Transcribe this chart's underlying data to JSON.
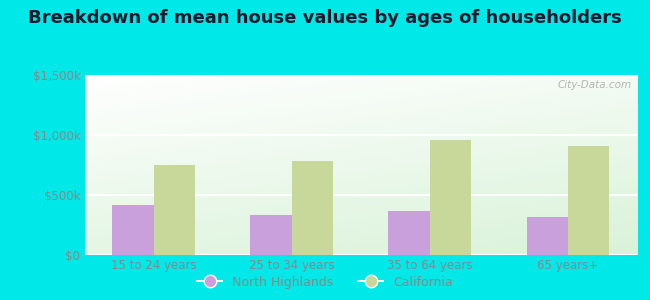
{
  "title": "Breakdown of mean house values by ages of householders",
  "categories": [
    "15 to 24 years",
    "25 to 34 years",
    "35 to 64 years",
    "65 years+"
  ],
  "north_highlands": [
    420000,
    330000,
    370000,
    320000
  ],
  "california": [
    750000,
    780000,
    960000,
    910000
  ],
  "ylim": [
    0,
    1500000
  ],
  "yticks": [
    0,
    500000,
    1000000,
    1500000
  ],
  "ytick_labels": [
    "$0",
    "$500k",
    "$1,000k",
    "$1,500k"
  ],
  "nh_color": "#c9a0dc",
  "ca_color": "#c8d89a",
  "background_outer": "#00e8e8",
  "background_plot_top": "#ffffff",
  "background_plot_bottom": "#d0ecd0",
  "title_fontsize": 13,
  "tick_color": "#888888",
  "legend_nh": "North Highlands",
  "legend_ca": "California",
  "watermark": "City-Data.com"
}
